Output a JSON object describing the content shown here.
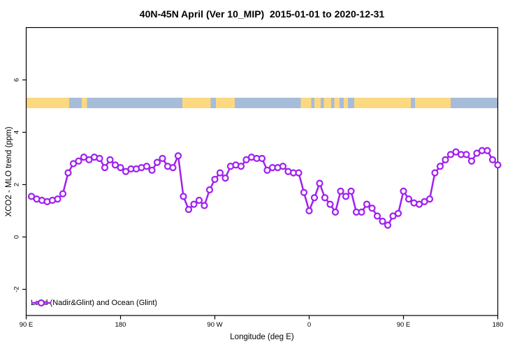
{
  "title": "40N-45N April (Ver 10_MIP)  2015-01-01 to 2020-12-31",
  "legend": {
    "label": "Land (Nadir&Glint) and Ocean (Glint)",
    "marker": "open-circle-on-line"
  },
  "colors": {
    "series": "#A020F0",
    "marker_fill": "#ffffff",
    "land": "#FCD880",
    "ocean": "#A6BCDA",
    "axis": "#000000",
    "background": "#ffffff"
  },
  "chart_data": {
    "type": "line",
    "title": "40N-45N April (Ver 10_MIP)  2015-01-01 to 2020-12-31",
    "xlabel": "Longitude (deg E)",
    "ylabel": "XCO2 - MLO trend (ppm)",
    "xlim": [
      90,
      540
    ],
    "ylim": [
      -3,
      8
    ],
    "grid": false,
    "legend_position": "bottom-left-inside",
    "x_ticks": [
      {
        "lon": 90,
        "label": "90 E"
      },
      {
        "lon": 180,
        "label": "180"
      },
      {
        "lon": 270,
        "label": "90 W"
      },
      {
        "lon": 360,
        "label": "0"
      },
      {
        "lon": 450,
        "label": "90 E"
      },
      {
        "lon": 540,
        "label": "180"
      }
    ],
    "y_ticks": [
      {
        "value": -2,
        "label": "-2"
      },
      {
        "value": 0,
        "label": "0"
      },
      {
        "value": 2,
        "label": "2"
      },
      {
        "value": 4,
        "label": "4"
      },
      {
        "value": 6,
        "label": "6"
      }
    ],
    "map_strip": {
      "description": "land-ocean strip for latitude band 40N-45N",
      "value_top": 5.32,
      "value_bottom": 4.92,
      "ocean_extent": [
        90,
        540
      ],
      "land_segments": [
        [
          90,
          131
        ],
        [
          143,
          148
        ],
        [
          239,
          266
        ],
        [
          271,
          289
        ],
        [
          352,
          362
        ],
        [
          365,
          371
        ],
        [
          374,
          381
        ],
        [
          384,
          389
        ],
        [
          393,
          397
        ],
        [
          403,
          457
        ],
        [
          461,
          495
        ]
      ]
    },
    "series": [
      {
        "name": "Land (Nadir&Glint) and Ocean (Glint)",
        "color": "#A020F0",
        "points": [
          [
            95,
            1.55
          ],
          [
            100,
            1.45
          ],
          [
            105,
            1.4
          ],
          [
            110,
            1.35
          ],
          [
            115,
            1.4
          ],
          [
            120,
            1.45
          ],
          [
            125,
            1.65
          ],
          [
            130,
            2.45
          ],
          [
            135,
            2.8
          ],
          [
            140,
            2.9
          ],
          [
            145,
            3.05
          ],
          [
            150,
            2.95
          ],
          [
            155,
            3.05
          ],
          [
            160,
            3.0
          ],
          [
            165,
            2.65
          ],
          [
            170,
            2.95
          ],
          [
            175,
            2.75
          ],
          [
            180,
            2.65
          ],
          [
            185,
            2.5
          ],
          [
            190,
            2.6
          ],
          [
            195,
            2.6
          ],
          [
            200,
            2.65
          ],
          [
            205,
            2.7
          ],
          [
            210,
            2.55
          ],
          [
            215,
            2.85
          ],
          [
            220,
            3.0
          ],
          [
            225,
            2.7
          ],
          [
            230,
            2.65
          ],
          [
            235,
            3.1
          ],
          [
            240,
            1.55
          ],
          [
            245,
            1.05
          ],
          [
            250,
            1.25
          ],
          [
            255,
            1.4
          ],
          [
            260,
            1.2
          ],
          [
            265,
            1.8
          ],
          [
            270,
            2.2
          ],
          [
            275,
            2.45
          ],
          [
            280,
            2.25
          ],
          [
            285,
            2.7
          ],
          [
            290,
            2.75
          ],
          [
            295,
            2.7
          ],
          [
            300,
            2.95
          ],
          [
            305,
            3.05
          ],
          [
            310,
            3.0
          ],
          [
            315,
            3.0
          ],
          [
            320,
            2.55
          ],
          [
            325,
            2.65
          ],
          [
            330,
            2.65
          ],
          [
            335,
            2.7
          ],
          [
            340,
            2.5
          ],
          [
            345,
            2.45
          ],
          [
            350,
            2.45
          ],
          [
            355,
            1.7
          ],
          [
            360,
            1.0
          ],
          [
            365,
            1.5
          ],
          [
            370,
            2.05
          ],
          [
            375,
            1.5
          ],
          [
            380,
            1.25
          ],
          [
            385,
            0.95
          ],
          [
            390,
            1.75
          ],
          [
            395,
            1.55
          ],
          [
            400,
            1.75
          ],
          [
            405,
            0.95
          ],
          [
            410,
            0.95
          ],
          [
            415,
            1.25
          ],
          [
            420,
            1.1
          ],
          [
            425,
            0.8
          ],
          [
            430,
            0.6
          ],
          [
            435,
            0.45
          ],
          [
            440,
            0.8
          ],
          [
            445,
            0.9
          ],
          [
            450,
            1.75
          ],
          [
            455,
            1.45
          ],
          [
            460,
            1.3
          ],
          [
            465,
            1.25
          ],
          [
            470,
            1.35
          ],
          [
            475,
            1.45
          ],
          [
            480,
            2.45
          ],
          [
            485,
            2.7
          ],
          [
            490,
            2.95
          ],
          [
            495,
            3.15
          ],
          [
            500,
            3.25
          ],
          [
            505,
            3.15
          ],
          [
            510,
            3.15
          ],
          [
            515,
            2.9
          ],
          [
            520,
            3.2
          ],
          [
            525,
            3.3
          ],
          [
            530,
            3.3
          ],
          [
            535,
            2.95
          ],
          [
            540,
            2.75
          ]
        ]
      }
    ]
  }
}
